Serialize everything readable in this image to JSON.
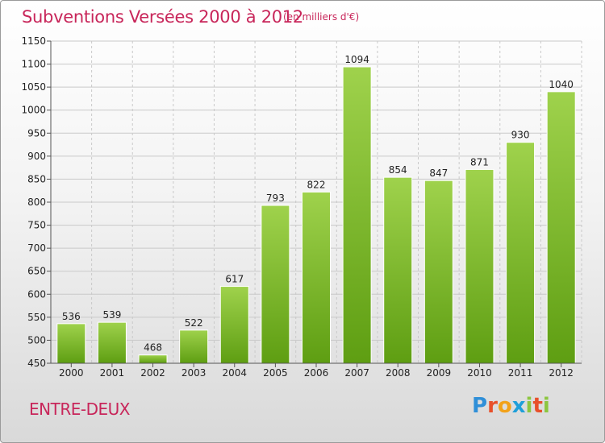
{
  "header": {
    "title": "Subventions Versées 2000 à 2012",
    "subtitle": "(en milliers d'€)"
  },
  "footer": {
    "commune": "ENTRE-DEUX",
    "logo_text": "Proxiti"
  },
  "colors": {
    "title": "#c8265a",
    "bar_light": "#9fd24c",
    "bar_dark": "#5e9e12",
    "grid": "#c9c9c9"
  },
  "chart_data": {
    "type": "bar",
    "categories": [
      "2000",
      "2001",
      "2002",
      "2003",
      "2004",
      "2005",
      "2006",
      "2007",
      "2008",
      "2009",
      "2010",
      "2011",
      "2012"
    ],
    "values": [
      536,
      539,
      468,
      522,
      617,
      793,
      822,
      1094,
      854,
      847,
      871,
      930,
      1040
    ],
    "ylim": [
      450,
      1150
    ],
    "yticks": [
      450,
      500,
      550,
      600,
      650,
      700,
      750,
      800,
      850,
      900,
      950,
      1000,
      1050,
      1100,
      1150
    ],
    "grid": true,
    "legend": "none"
  }
}
